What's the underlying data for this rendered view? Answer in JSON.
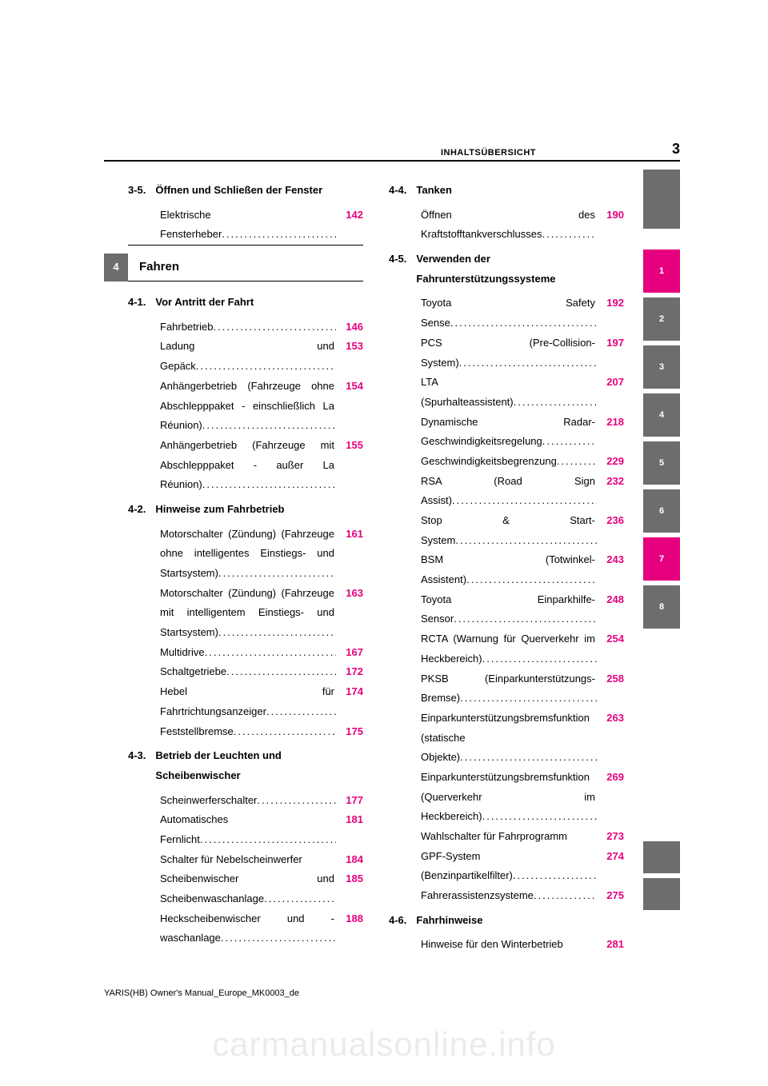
{
  "header": {
    "section_label": "INHALTSÜBERSICHT",
    "page_number": "3"
  },
  "footer": "YARIS(HB) Owner's Manual_Europe_MK0003_de",
  "watermark": "carmanualsonline.info",
  "chapter_tab": {
    "number": "4",
    "title": "Fahren"
  },
  "left_col": {
    "s35": {
      "no": "3-5.",
      "title": "Öffnen und Schließen der Fenster",
      "items": [
        {
          "t": "Elektrische Fensterheber",
          "p": "142"
        }
      ]
    },
    "s41": {
      "no": "4-1.",
      "title": "Vor Antritt der Fahrt",
      "items": [
        {
          "t": "Fahrbetrieb",
          "p": "146"
        },
        {
          "t": "Ladung und Gepäck",
          "p": "153"
        },
        {
          "t": "Anhängerbetrieb (Fahrzeuge ohne Abschlepppaket - einschließlich La Réunion)",
          "p": "154"
        },
        {
          "t": "Anhängerbetrieb (Fahrzeuge mit Abschlepppaket - außer La Réunion)",
          "p": "155"
        }
      ]
    },
    "s42": {
      "no": "4-2.",
      "title": "Hinweise zum Fahrbetrieb",
      "items": [
        {
          "t": "Motorschalter (Zündung) (Fahrzeuge ohne intelligentes Einstiegs- und Startsystem)",
          "p": "161"
        },
        {
          "t": "Motorschalter (Zündung) (Fahrzeuge mit intelligentem Einstiegs- und Startsystem)",
          "p": "163"
        },
        {
          "t": "Multidrive",
          "p": "167"
        },
        {
          "t": "Schaltgetriebe",
          "p": "172"
        },
        {
          "t": "Hebel für Fahrtrichtungsanzeiger",
          "p": "174"
        },
        {
          "t": "Feststellbremse",
          "p": "175"
        }
      ]
    },
    "s43": {
      "no": "4-3.",
      "title": "Betrieb der Leuchten und Scheibenwischer",
      "items": [
        {
          "t": "Scheinwerferschalter",
          "p": "177"
        },
        {
          "t": "Automatisches Fernlicht",
          "p": "181"
        },
        {
          "t": "Schalter für Nebelscheinwerfer",
          "p": "184",
          "nodots": true
        },
        {
          "t": "Scheibenwischer und Scheibenwaschanlage",
          "p": "185"
        },
        {
          "t": "Heckscheibenwischer und -waschanlage",
          "p": "188"
        }
      ]
    }
  },
  "right_col": {
    "s44": {
      "no": "4-4.",
      "title": "Tanken",
      "items": [
        {
          "t": "Öffnen des Kraftstofftankverschlusses",
          "p": "190"
        }
      ]
    },
    "s45": {
      "no": "4-5.",
      "title": "Verwenden der Fahrunterstützungssysteme",
      "items": [
        {
          "t": "Toyota Safety Sense",
          "p": "192"
        },
        {
          "t": "PCS (Pre-Collision-System)",
          "p": "197"
        },
        {
          "t": "LTA (Spurhalteassistent)",
          "p": "207"
        },
        {
          "t": "Dynamische Radar-Geschwindigkeitsregelung",
          "p": "218"
        },
        {
          "t": "Geschwindigkeitsbegrenzung",
          "p": "229"
        },
        {
          "t": "RSA (Road Sign Assist)",
          "p": "232"
        },
        {
          "t": "Stop & Start-System",
          "p": "236"
        },
        {
          "t": "BSM (Totwinkel-Assistent)",
          "p": "243"
        },
        {
          "t": "Toyota Einparkhilfe- Sensor",
          "p": "248"
        },
        {
          "t": "RCTA (Warnung für Querverkehr im Heckbereich)",
          "p": "254"
        },
        {
          "t": "PKSB (Einparkunterstützungs-Bremse)",
          "p": "258"
        },
        {
          "t": "Einparkunterstützungsbremsfunktion (statische Objekte)",
          "p": "263"
        },
        {
          "t": "Einparkunterstützungsbremsfunktion (Querverkehr im Heckbereich)",
          "p": "269"
        },
        {
          "t": "Wahlschalter für Fahrprogramm",
          "p": "273",
          "nodots": true
        },
        {
          "t": "GPF-System (Benzinpartikelfilter)",
          "p": "274"
        },
        {
          "t": "Fahrerassistenzsysteme",
          "p": "275"
        }
      ]
    },
    "s46": {
      "no": "4-6.",
      "title": "Fahrhinweise",
      "items": [
        {
          "t": "Hinweise für den Winterbetrieb",
          "p": "281",
          "nodots": true
        }
      ]
    }
  },
  "side_tabs": [
    "1",
    "2",
    "3",
    "4",
    "5",
    "6",
    "7",
    "8"
  ],
  "side_tabs_pink": {
    "1": true,
    "7": true
  },
  "colors": {
    "pink": "#e6007e",
    "grey": "#6c6d6d"
  }
}
